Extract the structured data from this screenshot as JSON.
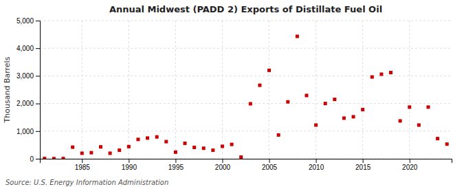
{
  "chart_data": {
    "type": "scatter",
    "title": "Annual Midwest (PADD 2) Exports of Distillate Fuel Oil",
    "ylabel": "Thousand Barrels",
    "source": "Source: U.S. Energy Information Administration",
    "color": "#cc0000",
    "marker": "square",
    "grid": true,
    "xlim": [
      1980.5,
      2024.5
    ],
    "ylim": [
      0,
      5000
    ],
    "xticks": [
      1985,
      1990,
      1995,
      2000,
      2005,
      2010,
      2015,
      2020
    ],
    "yticks": [
      0,
      {
        "value": 1000,
        "label": "1,000"
      },
      {
        "value": 2000,
        "label": "2,000"
      },
      {
        "value": 3000,
        "label": "3,000"
      },
      {
        "value": 4000,
        "label": "4,000"
      },
      {
        "value": 5000,
        "label": "5,000"
      }
    ],
    "x": [
      1981,
      1982,
      1983,
      1984,
      1985,
      1986,
      1987,
      1988,
      1989,
      1990,
      1991,
      1992,
      1993,
      1994,
      1995,
      1996,
      1997,
      1998,
      1999,
      2000,
      2001,
      2002,
      2003,
      2004,
      2005,
      2006,
      2007,
      2008,
      2009,
      2010,
      2011,
      2012,
      2013,
      2014,
      2015,
      2016,
      2017,
      2018,
      2019,
      2020,
      2021,
      2022,
      2023,
      2024
    ],
    "values": [
      10,
      5,
      8,
      420,
      200,
      220,
      430,
      200,
      310,
      440,
      700,
      750,
      790,
      620,
      240,
      560,
      410,
      380,
      310,
      450,
      520,
      60,
      1990,
      2660,
      3200,
      860,
      2060,
      4430,
      2290,
      1220,
      2000,
      2150,
      1470,
      1520,
      1780,
      2960,
      3060,
      3120,
      1370,
      1870,
      1220,
      1870,
      730,
      530
    ]
  }
}
